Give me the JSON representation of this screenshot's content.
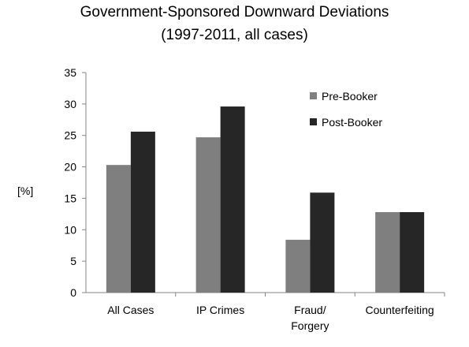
{
  "chart_data": {
    "type": "bar",
    "title": "Government-Sponsored Downward Deviations",
    "subtitle": "(1997-2011, all cases)",
    "ylabel": "[%]",
    "xlabel": "",
    "ylim": [
      0,
      35
    ],
    "yticks": [
      0,
      5,
      10,
      15,
      20,
      25,
      30,
      35
    ],
    "categories": [
      [
        "All Cases"
      ],
      [
        "IP Crimes"
      ],
      [
        "Fraud/",
        "Forgery"
      ],
      [
        "Counterfeiting"
      ]
    ],
    "series": [
      {
        "name": "Pre-Booker",
        "color": "#7f7f7f",
        "values": [
          20.3,
          24.7,
          8.4,
          12.8
        ]
      },
      {
        "name": "Post-Booker",
        "color": "#262626",
        "values": [
          25.6,
          29.6,
          15.9,
          12.8
        ]
      }
    ],
    "grid": false,
    "legend": "top-right"
  }
}
